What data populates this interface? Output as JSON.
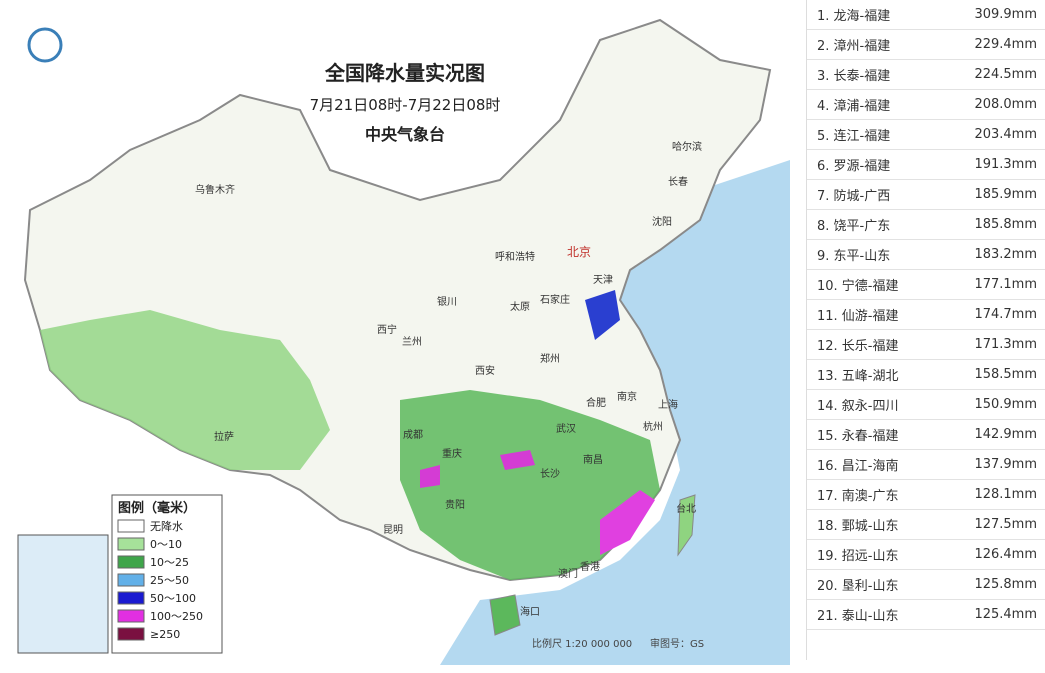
{
  "map": {
    "title": "全国降水量实况图",
    "subtitle": "7月21日08时-7月22日08时",
    "agency": "中央气象台",
    "legend": {
      "title": "图例（毫米）",
      "items": [
        {
          "label": "无降水",
          "color": "#ffffff"
        },
        {
          "label": "0～10",
          "color": "#a6e29a"
        },
        {
          "label": "10～25",
          "color": "#3fa54a"
        },
        {
          "label": "25～50",
          "color": "#62b0e8"
        },
        {
          "label": "50～100",
          "color": "#1a1ad0"
        },
        {
          "label": "100～250",
          "color": "#e22fe2"
        },
        {
          "label": "≥250",
          "color": "#7a1040"
        }
      ]
    },
    "cities": [
      "乌鲁木齐",
      "哈尔滨",
      "长春",
      "沈阳",
      "北京",
      "呼和浩特",
      "天津",
      "银川",
      "太原",
      "石家庄",
      "西宁",
      "兰州",
      "郑州",
      "西安",
      "合肥",
      "南京",
      "上海",
      "拉萨",
      "成都",
      "武汉",
      "杭州",
      "重庆",
      "长沙",
      "南昌",
      "贵阳",
      "台北",
      "昆明",
      "香港",
      "澳门",
      "海口"
    ],
    "scale": "比例尺 1:20 000 000",
    "approval": "审图号：GS"
  },
  "ranking": [
    {
      "label": "1. 龙海-福建",
      "value": "309.9mm"
    },
    {
      "label": "2. 漳州-福建",
      "value": "229.4mm"
    },
    {
      "label": "3. 长泰-福建",
      "value": "224.5mm"
    },
    {
      "label": "4. 漳浦-福建",
      "value": "208.0mm"
    },
    {
      "label": "5. 连江-福建",
      "value": "203.4mm"
    },
    {
      "label": "6. 罗源-福建",
      "value": "191.3mm"
    },
    {
      "label": "7. 防城-广西",
      "value": "185.9mm"
    },
    {
      "label": "8. 饶平-广东",
      "value": "185.8mm"
    },
    {
      "label": "9. 东平-山东",
      "value": "183.2mm"
    },
    {
      "label": "10. 宁德-福建",
      "value": "177.1mm"
    },
    {
      "label": "11. 仙游-福建",
      "value": "174.7mm"
    },
    {
      "label": "12. 长乐-福建",
      "value": "171.3mm"
    },
    {
      "label": "13. 五峰-湖北",
      "value": "158.5mm"
    },
    {
      "label": "14. 叙永-四川",
      "value": "150.9mm"
    },
    {
      "label": "15. 永春-福建",
      "value": "142.9mm"
    },
    {
      "label": "16. 昌江-海南",
      "value": "137.9mm"
    },
    {
      "label": "17. 南澳-广东",
      "value": "128.1mm"
    },
    {
      "label": "18. 鄄城-山东",
      "value": "127.5mm"
    },
    {
      "label": "19. 招远-山东",
      "value": "126.4mm"
    },
    {
      "label": "20. 垦利-山东",
      "value": "125.8mm"
    },
    {
      "label": "21. 泰山-山东",
      "value": "125.4mm"
    }
  ]
}
